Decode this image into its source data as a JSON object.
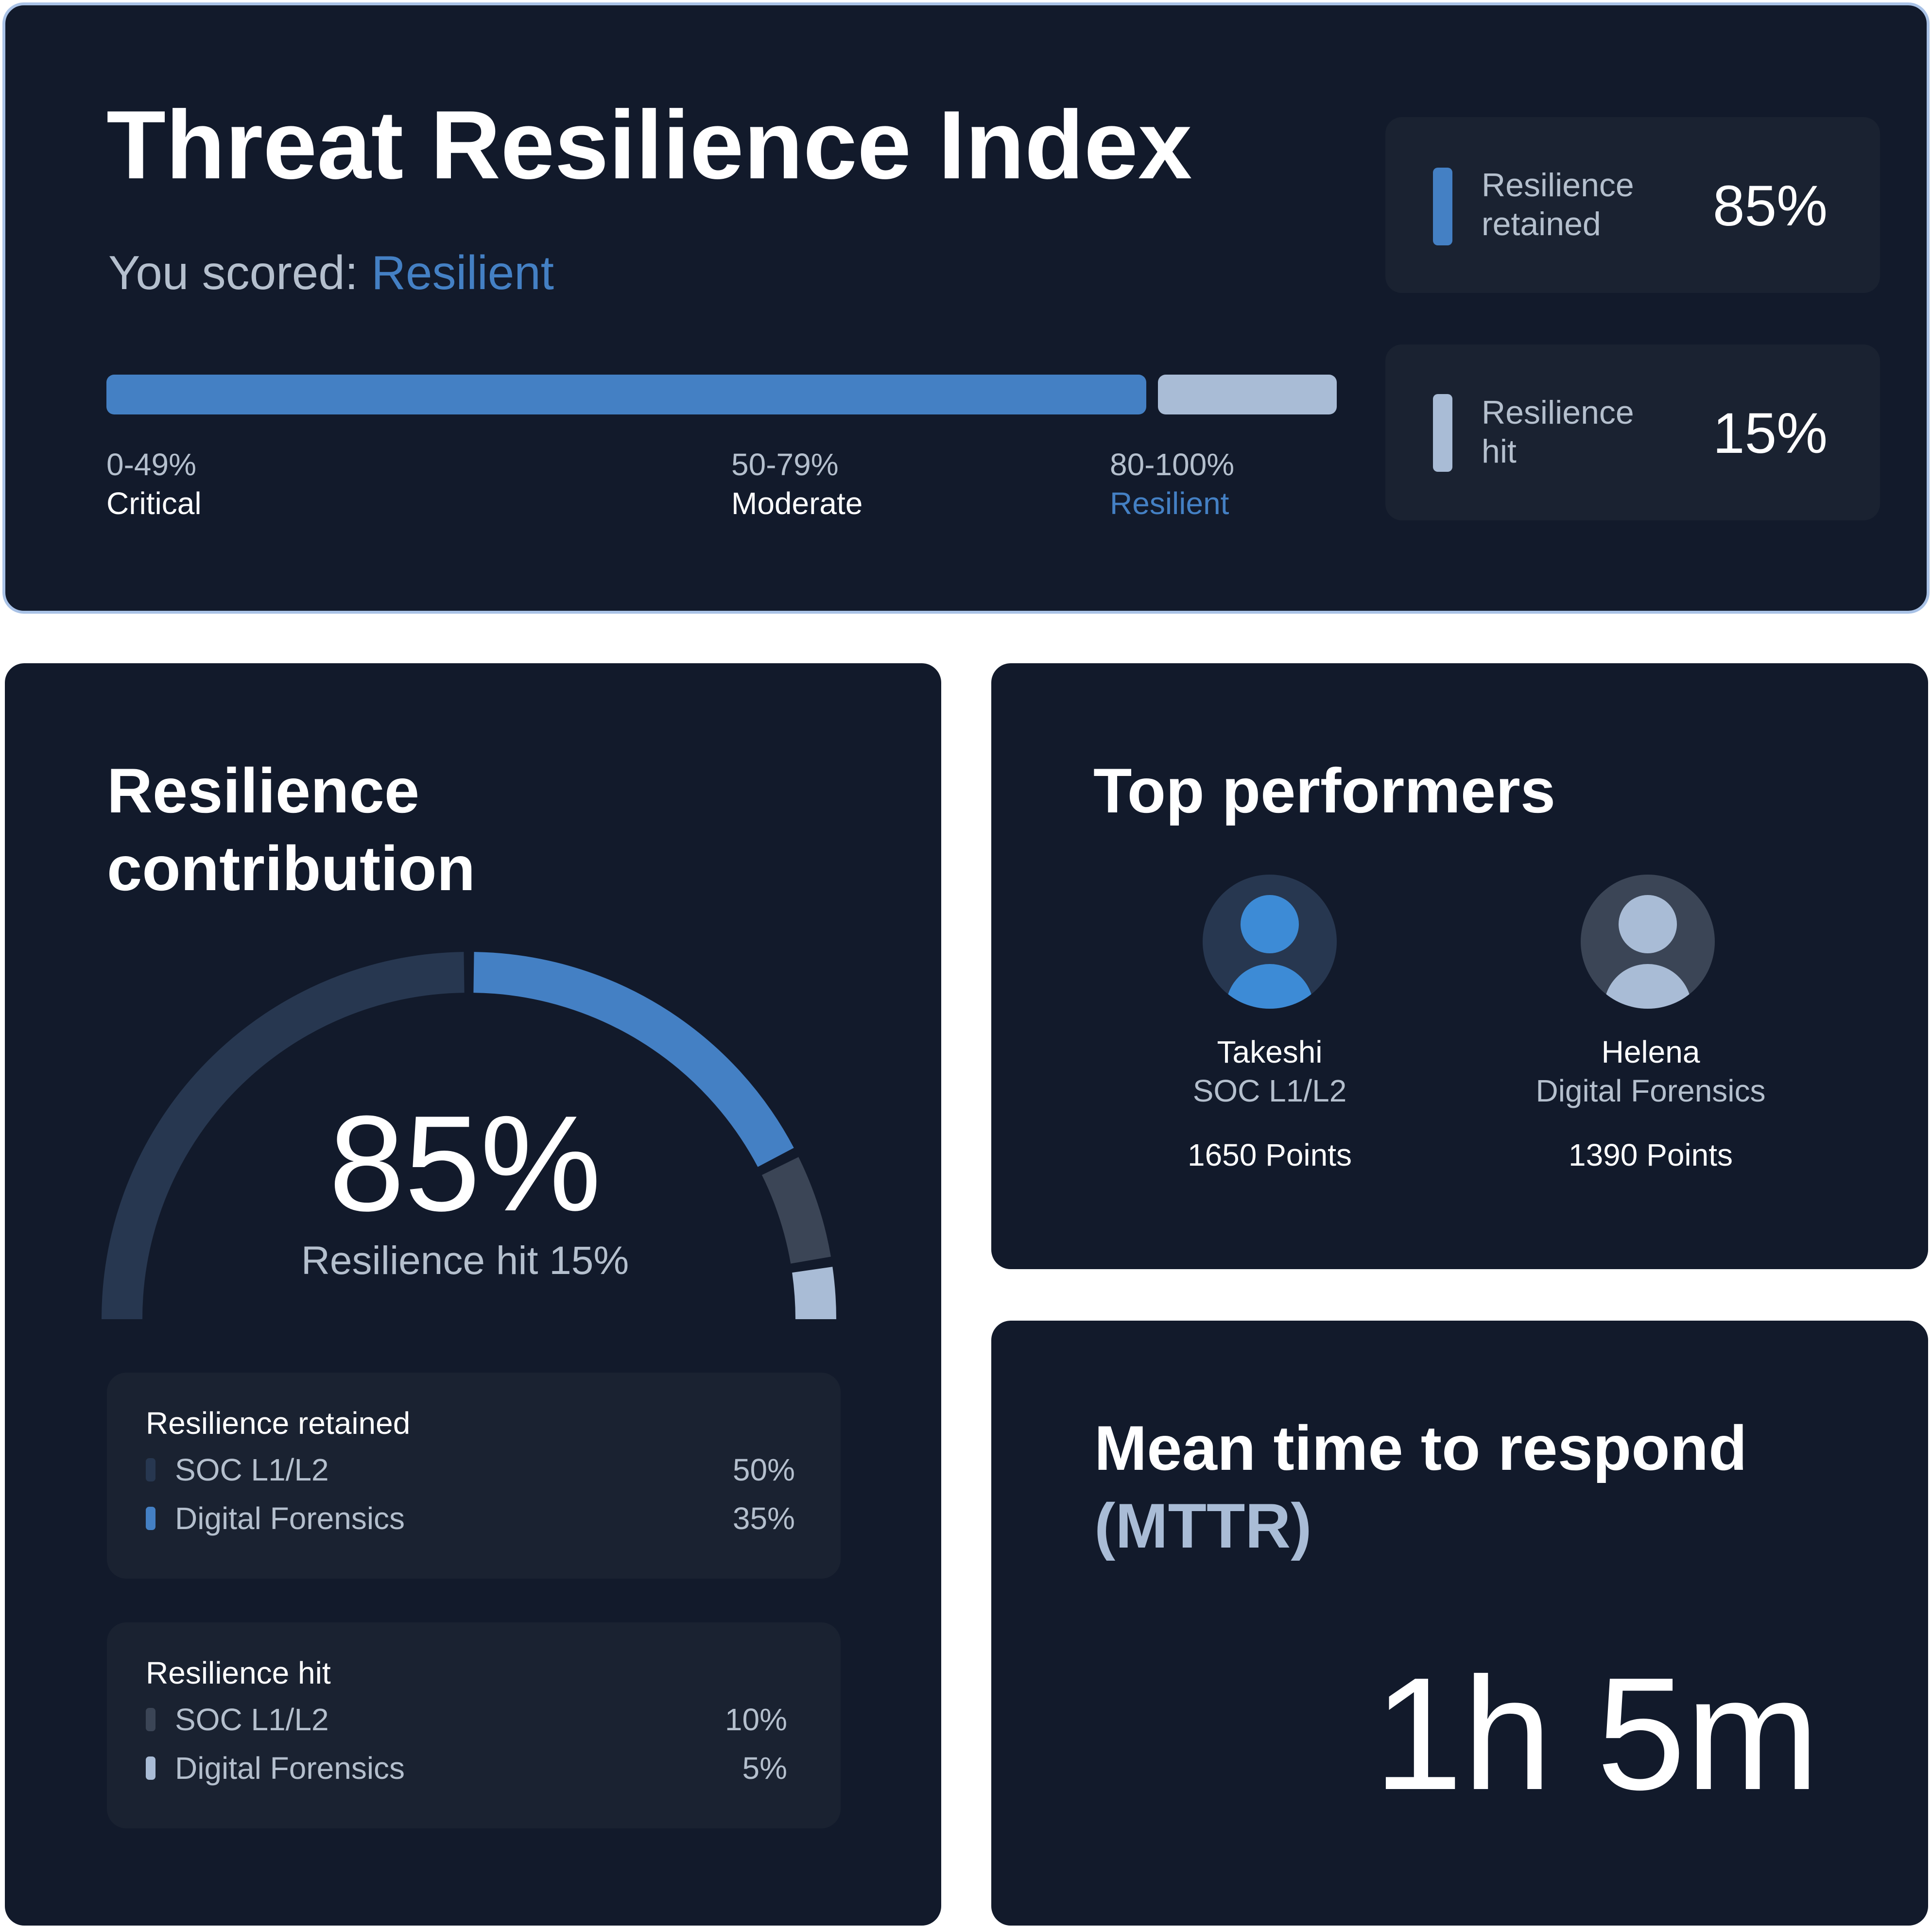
{
  "colors": {
    "card_bg": "#121a2b",
    "subcard_bg": "#1a2231",
    "accent_blue": "#4480c4",
    "light_blue": "#a9bcd6",
    "track_dark": "#273750",
    "hit_soc": "#3b4556",
    "muted_text": "#b4bfcd"
  },
  "index": {
    "title": "Threat Resilience Index",
    "score_prefix": "You scored: ",
    "score_value": "Resilient",
    "retained_fraction": 0.85,
    "ranges": [
      {
        "range": "0-49%",
        "label": "Critical"
      },
      {
        "range": "50-79%",
        "label": "Moderate"
      },
      {
        "range": "80-100%",
        "label": "Resilient"
      }
    ],
    "stats": [
      {
        "label_line1": "Resilience",
        "label_line2": "retained",
        "value": "85%"
      },
      {
        "label_line1": "Resilience",
        "label_line2": "hit",
        "value": "15%"
      }
    ]
  },
  "contribution": {
    "title_line1": "Resilience",
    "title_line2": "contribution",
    "big_value": "85%",
    "sub_label": "Resilience hit 15%",
    "gauge_segments": [
      {
        "name": "retained-soc",
        "value": 50,
        "color": "#273750"
      },
      {
        "name": "retained-forensics",
        "value": 35,
        "color": "#4480c4"
      },
      {
        "name": "hit-soc",
        "value": 10,
        "color": "#3b4556"
      },
      {
        "name": "hit-forensics",
        "value": 5,
        "color": "#a9bcd6"
      }
    ],
    "retained": {
      "heading": "Resilience retained",
      "rows": [
        {
          "label": "SOC L1/L2",
          "value": "50%",
          "color": "#273750"
        },
        {
          "label": "Digital Forensics",
          "value": "35%",
          "color": "#4480c4"
        }
      ]
    },
    "hit": {
      "heading": "Resilience hit",
      "rows": [
        {
          "label": "SOC L1/L2",
          "value": "10%",
          "color": "#3b4556"
        },
        {
          "label": "Digital Forensics",
          "value": "5%",
          "color": "#a9bcd6"
        }
      ]
    }
  },
  "top_performers": {
    "title": "Top performers",
    "people": [
      {
        "name": "Takeshi",
        "role": "SOC L1/L2",
        "points": "1650 Points",
        "icon": "user-avatar-icon"
      },
      {
        "name": "Helena",
        "role": "Digital Forensics",
        "points": "1390 Points",
        "icon": "user-avatar-icon"
      }
    ]
  },
  "mttr": {
    "title_line1": "Mean time to respond",
    "title_line2": "(MTTR)",
    "value": "1h 5m"
  }
}
